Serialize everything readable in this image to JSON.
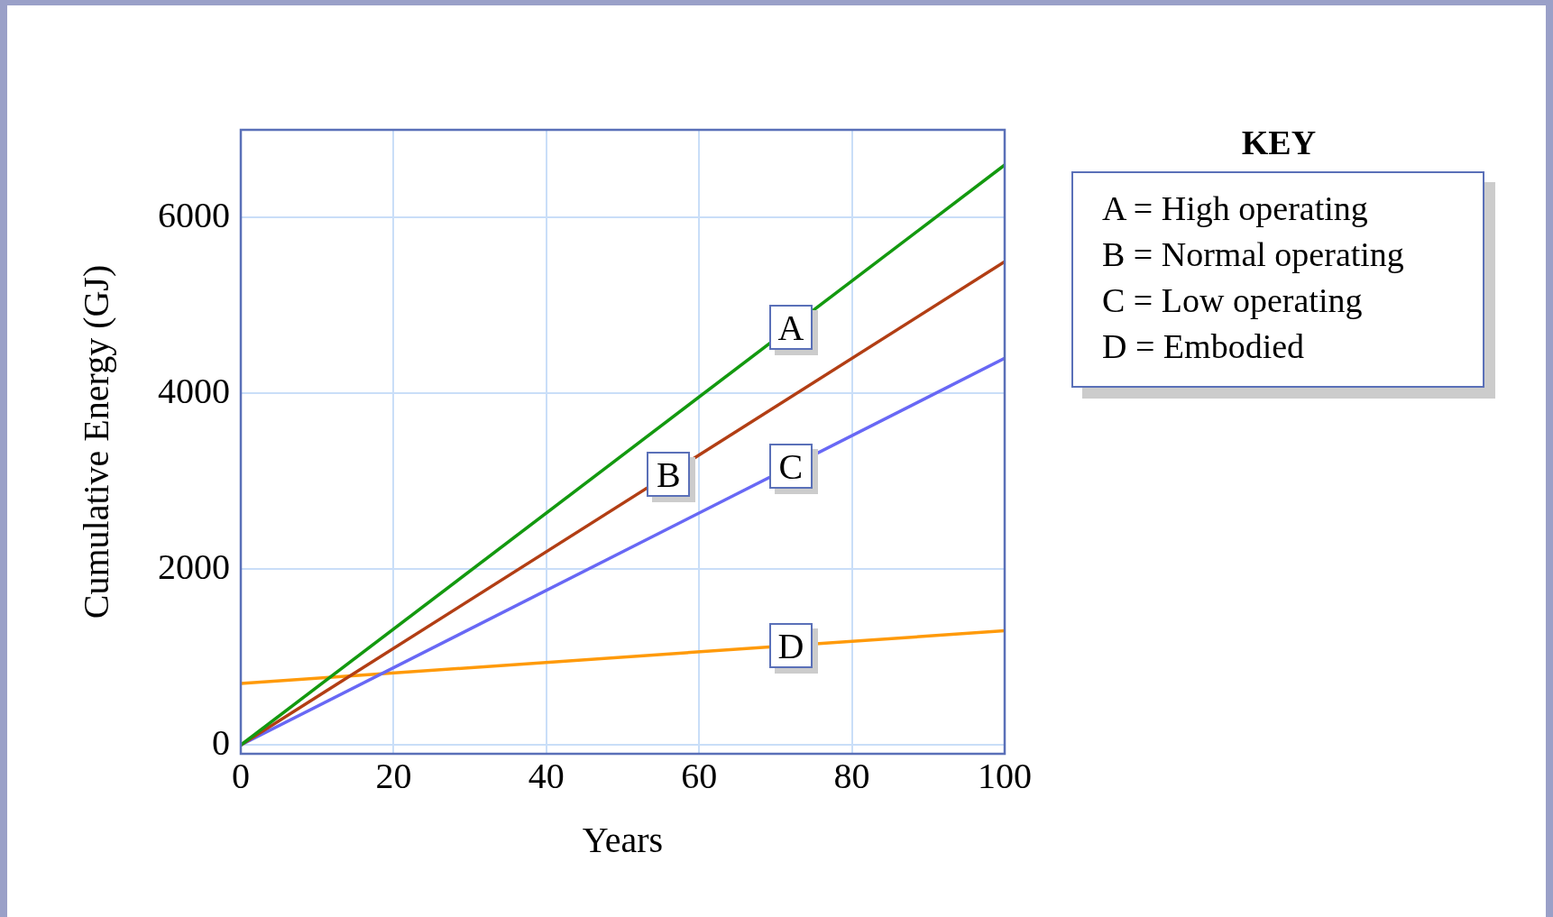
{
  "chart_data": {
    "type": "line",
    "xlabel": "Years",
    "ylabel": "Cumulative Energy (GJ)",
    "legend_title": "KEY",
    "legend": "right",
    "x": [
      0,
      100
    ],
    "series": [
      {
        "name": "A = High operating",
        "color": "#13990f",
        "values": [
          0,
          6600
        ]
      },
      {
        "name": "B = Normal operating",
        "color": "#b23e14",
        "values": [
          0,
          5500
        ]
      },
      {
        "name": "C = Low operating",
        "color": "#6868f5",
        "values": [
          0,
          4400
        ]
      },
      {
        "name": "D = Embodied",
        "color": "#ff9a0a",
        "values": [
          700,
          1300
        ]
      }
    ],
    "xlim": [
      0,
      100
    ],
    "xticks": [
      0,
      20,
      40,
      60,
      80,
      100
    ],
    "ylim": [
      -100,
      7000
    ],
    "yticks": [
      0,
      2000,
      4000,
      6000
    ],
    "grid": true,
    "marker": "none",
    "line_style": "solid",
    "annotations": [
      "A",
      "B",
      "C",
      "D"
    ]
  }
}
